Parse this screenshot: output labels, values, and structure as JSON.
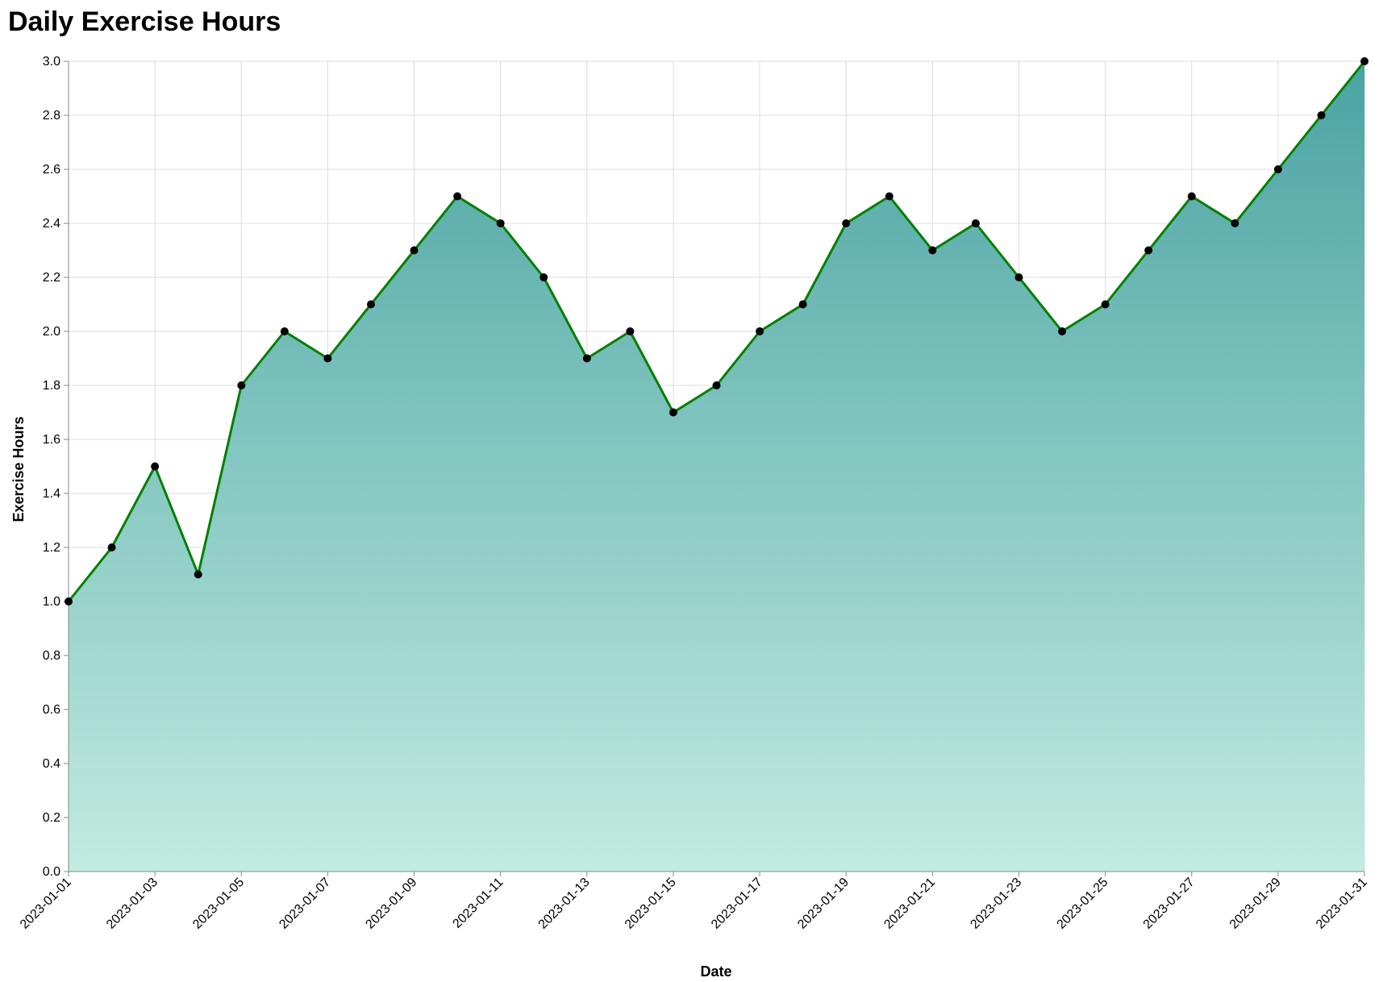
{
  "chart_data": {
    "type": "area",
    "title": "Daily Exercise Hours",
    "xlabel": "Date",
    "ylabel": "Exercise Hours",
    "ylim": [
      0,
      3.0
    ],
    "yticks": [
      "0.0",
      "0.2",
      "0.4",
      "0.6",
      "0.8",
      "1.0",
      "1.2",
      "1.4",
      "1.6",
      "1.8",
      "2.0",
      "2.2",
      "2.4",
      "2.6",
      "2.8",
      "3.0"
    ],
    "xticks": [
      "2023-01-01",
      "2023-01-03",
      "2023-01-05",
      "2023-01-07",
      "2023-01-09",
      "2023-01-11",
      "2023-01-13",
      "2023-01-15",
      "2023-01-17",
      "2023-01-19",
      "2023-01-21",
      "2023-01-23",
      "2023-01-25",
      "2023-01-27",
      "2023-01-29",
      "2023-01-31"
    ],
    "x": [
      "2023-01-01",
      "2023-01-02",
      "2023-01-03",
      "2023-01-04",
      "2023-01-05",
      "2023-01-06",
      "2023-01-07",
      "2023-01-08",
      "2023-01-09",
      "2023-01-10",
      "2023-01-11",
      "2023-01-12",
      "2023-01-13",
      "2023-01-14",
      "2023-01-15",
      "2023-01-16",
      "2023-01-17",
      "2023-01-18",
      "2023-01-19",
      "2023-01-20",
      "2023-01-21",
      "2023-01-22",
      "2023-01-23",
      "2023-01-24",
      "2023-01-25",
      "2023-01-26",
      "2023-01-27",
      "2023-01-28",
      "2023-01-29",
      "2023-01-30",
      "2023-01-31"
    ],
    "values": [
      1.0,
      1.2,
      1.5,
      1.1,
      1.8,
      2.0,
      1.9,
      2.1,
      2.3,
      2.5,
      2.4,
      2.2,
      1.9,
      2.0,
      1.7,
      1.8,
      2.0,
      2.1,
      2.4,
      2.5,
      2.3,
      2.4,
      2.2,
      2.0,
      2.1,
      2.3,
      2.5,
      2.4,
      2.6,
      2.8,
      3.0
    ],
    "grid": true,
    "colors": {
      "line": "#008000",
      "area_top": "#4aa3a3",
      "area_bottom": "#c2ebe0",
      "point": "#000000",
      "grid": "#dddddd",
      "axis": "#888888"
    }
  }
}
